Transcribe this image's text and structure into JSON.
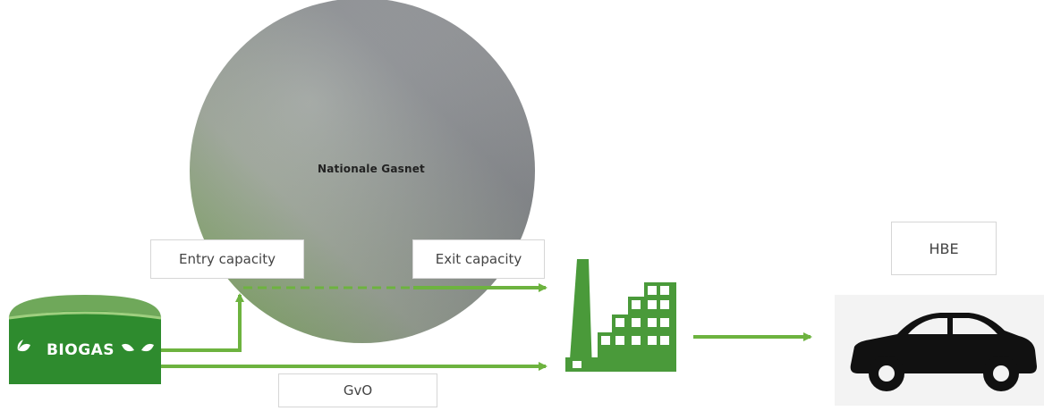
{
  "gasnet": {
    "label": "Nationale Gasnet"
  },
  "boxes": {
    "entry_capacity": "Entry capacity",
    "exit_capacity": "Exit capacity",
    "gvo": "GvO",
    "hbe": "HBE"
  },
  "biogas": {
    "label": "BIOGAS"
  },
  "icons": [
    "biogas-tank-icon",
    "leaf-icon",
    "factory-icon",
    "car-icon"
  ],
  "colors": {
    "accent_green": "#6db33f",
    "biogas_dark": "#2f8a2f",
    "factory_green": "#4a9a3a",
    "sphere_gray": "#8a8d90"
  }
}
